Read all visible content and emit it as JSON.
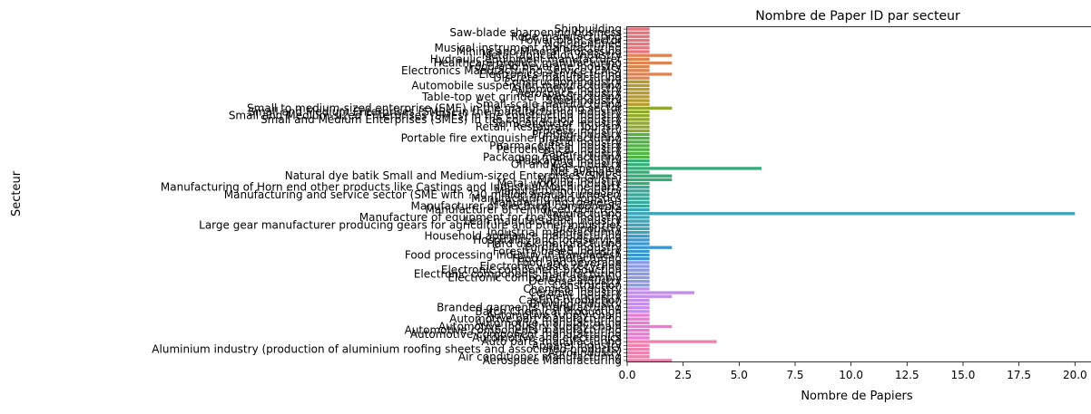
{
  "chart_data": {
    "type": "bar",
    "orientation": "horizontal",
    "title": "Nombre de Paper ID par secteur",
    "xlabel": "Nombre de Papiers",
    "ylabel": "Secteur",
    "xlim": [
      0,
      21
    ],
    "xticks": [
      "0.0",
      "2.5",
      "5.0",
      "7.5",
      "10.0",
      "12.5",
      "15.0",
      "17.5",
      "20.0"
    ],
    "grid": false,
    "legend": "none",
    "categories": [
      "Shipbuilding",
      "Saw-blade sharpening business",
      "Rope manufacturing",
      "Power plant sector",
      "Non-Identified",
      "Musical instrument manufacturing",
      "Mining and Mineral Processing",
      "Metal fabrication industry",
      "Hydraulic equipment manufacturer",
      "Healthcare product manufacturing",
      "Food and beverage industry",
      "Electronics Manufacturing Service (EMS)",
      "Electronics manufacturing",
      "Discrete manufacturing",
      "Construction industry",
      "Automobile suspension manufacturing",
      "Automotive industry",
      "Aerospace industry",
      "Table-top wet grinder manufacturing",
      "Steel industry",
      "Small-scale manufacturing",
      "Small to medium-sized enterprise (SME) in the manufacturing sector",
      "Small and Medium Enterprises (SMEs) in the manufacturing industry",
      "Small and Medium-sized Enterprises (SMEs) in the construction industry",
      "Small and Medium Enterprises (SMEs) in the construction industry",
      "Semiconductor industry",
      "Retail, Restaurant, Tourism",
      "Process industry",
      "Printing industry",
      "Portable fire extinguisher manufacturing",
      "Plastic industry",
      "Pharmaceutical industry",
      "Petrochemical industry",
      "Paper industry",
      "Packaging manufacturing",
      "Packaging industry",
      "Oil and Gas industry",
      "Not specified",
      "Not available",
      "Natural dye batik Small and Medium-sized Enterprises (SMEs)",
      "Mining industry",
      "Metal working industry",
      "Manufacturing of Horn end other products like Castings and Industrial Machine parts",
      "Manufacturing industry",
      "Manufacturing and service sector (SME with ?20 million annual turnover)",
      "Manufacturing and logistics",
      "Manufacturing (general)",
      "Manufacturer of electrical components",
      "Manufacturer of reinforced concrete",
      "Manufacturing",
      "Manufacture of equipment for the steel industry",
      "Lean manufacturing industry",
      "Large gear manufacturer producing gears for agriculture and other industries",
      "Jute industry",
      "Industrial manufacturing",
      "Household appliance manufacturing",
      "Hospitality and foodservice",
      "Hard disk manufacturing",
      "Furniture industry",
      "Forestry-based industry",
      "Food processing industry in Bangladesh",
      "Food manufacturing",
      "Food and beverage",
      "Electronic waste recycling",
      "Electronic component production",
      "Electronic components manufacturing",
      "Electronic component assembly",
      "Defense industry",
      "Construction",
      "Chemical industry",
      "Ceramic industry",
      "Cement industry",
      "Casting production",
      "Brewing industry",
      "Branded garments manufacturing",
      "Batch Chemical Production",
      "Automotive supply chain",
      "Automotive part manufacturing",
      "Automotive manufacturing",
      "Automotive industry supply chain",
      "Automotive components manufacturing",
      "Automotive component manufacturing",
      "Automotive and electronics",
      "Auto parts manufacturing",
      "Apparel industry",
      "Aluminium industry (production of aluminium roofing sheets and associated products)",
      "Agro-industry",
      "Air conditioner manufacturing",
      "Aerospace Manufacturing"
    ],
    "values": [
      1,
      1,
      1,
      1,
      1,
      1,
      1,
      2,
      1,
      2,
      1,
      1,
      2,
      1,
      1,
      1,
      1,
      1,
      1,
      1,
      1,
      2,
      1,
      1,
      1,
      1,
      1,
      1,
      1,
      1,
      1,
      1,
      1,
      1,
      1,
      1,
      1,
      6,
      1,
      2,
      2,
      1,
      1,
      1,
      1,
      1,
      1,
      1,
      1,
      20,
      1,
      1,
      1,
      1,
      1,
      1,
      1,
      1,
      2,
      1,
      1,
      1,
      1,
      1,
      1,
      1,
      1,
      1,
      1,
      1,
      3,
      2,
      1,
      1,
      1,
      1,
      1,
      1,
      1,
      2,
      1,
      1,
      1,
      4,
      1,
      1,
      1,
      1,
      2
    ],
    "colors": {
      "palette": [
        "#e8737b",
        "#dd8452",
        "#b59a2c",
        "#8fa82d",
        "#4fb33f",
        "#36ad79",
        "#38a89a",
        "#3aa4b8",
        "#3a97d1",
        "#8b9ae6",
        "#c28eea",
        "#e97bd4",
        "#ec83ad"
      ]
    }
  }
}
